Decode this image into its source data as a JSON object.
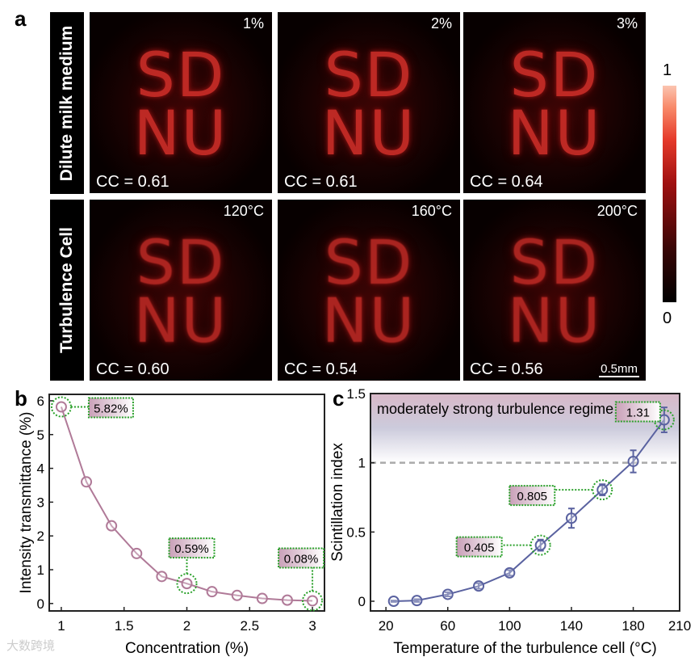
{
  "panel_a": {
    "label": "a",
    "row_labels": [
      "Dilute milk medium",
      "Turbulence Cell"
    ],
    "image_text": "SD\nNU",
    "images": [
      {
        "condition": "1%",
        "cc": "CC = 0.61"
      },
      {
        "condition": "2%",
        "cc": "CC = 0.61"
      },
      {
        "condition": "3%",
        "cc": "CC = 0.64"
      },
      {
        "condition": "120°C",
        "cc": "CC = 0.60"
      },
      {
        "condition": "160°C",
        "cc": "CC = 0.54"
      },
      {
        "condition": "200°C",
        "cc": "CC = 0.56"
      }
    ],
    "scale_bar": "0.5mm",
    "colorbar": {
      "max": "1",
      "min": "0"
    }
  },
  "watermark": "大数跨境",
  "chart_data": [
    {
      "panel": "b",
      "type": "line",
      "xlabel": "Concentration (%)",
      "ylabel": "Intensity transmittance (%)",
      "x": [
        1,
        1.2,
        1.4,
        1.6,
        1.8,
        2,
        2.2,
        2.4,
        2.6,
        2.8,
        3
      ],
      "y": [
        5.82,
        3.6,
        2.3,
        1.48,
        0.8,
        0.59,
        0.35,
        0.24,
        0.15,
        0.1,
        0.08
      ],
      "xlim": [
        0.904,
        3.096
      ],
      "ylim": [
        -0.22,
        6.19
      ],
      "xticks": [
        1,
        1.5,
        2,
        2.5,
        3
      ],
      "xtick_labels": [
        "1",
        "1.5",
        "2",
        "2.5",
        "3"
      ],
      "yticks": [
        0,
        1,
        2,
        3,
        4,
        5,
        6
      ],
      "ytick_labels": [
        "0",
        "1",
        "2",
        "3",
        "4",
        "5",
        "6"
      ],
      "color": "#b07a98",
      "annotations": [
        {
          "x": 1,
          "y": 5.82,
          "text": "5.82%"
        },
        {
          "x": 2,
          "y": 0.59,
          "text": "0.59%"
        },
        {
          "x": 3,
          "y": 0.08,
          "text": "0.08%"
        }
      ]
    },
    {
      "panel": "c",
      "type": "line",
      "xlabel": "Temperature of the turbulence cell (°C)",
      "ylabel": "Scintillation index",
      "x": [
        25,
        40,
        60,
        80,
        100,
        120,
        140,
        160,
        180,
        200
      ],
      "y": [
        0,
        0.005,
        0.05,
        0.11,
        0.205,
        0.405,
        0.6,
        0.805,
        1.01,
        1.31
      ],
      "yerr": [
        0.005,
        0.01,
        0.015,
        0.02,
        0.02,
        0.04,
        0.07,
        0.04,
        0.08,
        0.09
      ],
      "xlim": [
        10,
        210
      ],
      "ylim": [
        -0.07,
        1.5
      ],
      "xticks": [
        20,
        60,
        100,
        140,
        180,
        210
      ],
      "xtick_labels": [
        "20",
        "60",
        "100",
        "140",
        "180",
        "210"
      ],
      "yticks": [
        0,
        0.5,
        1,
        1.5
      ],
      "ytick_labels": [
        "0",
        "0.5",
        "1",
        "1.5"
      ],
      "color": "#5a62a0",
      "threshold": 1,
      "region_label": "moderately strong turbulence regime",
      "annotations": [
        {
          "x": 120,
          "y": 0.405,
          "text": "0.405"
        },
        {
          "x": 160,
          "y": 0.805,
          "text": "0.805"
        },
        {
          "x": 200,
          "y": 1.31,
          "text": "1.31"
        }
      ]
    }
  ]
}
